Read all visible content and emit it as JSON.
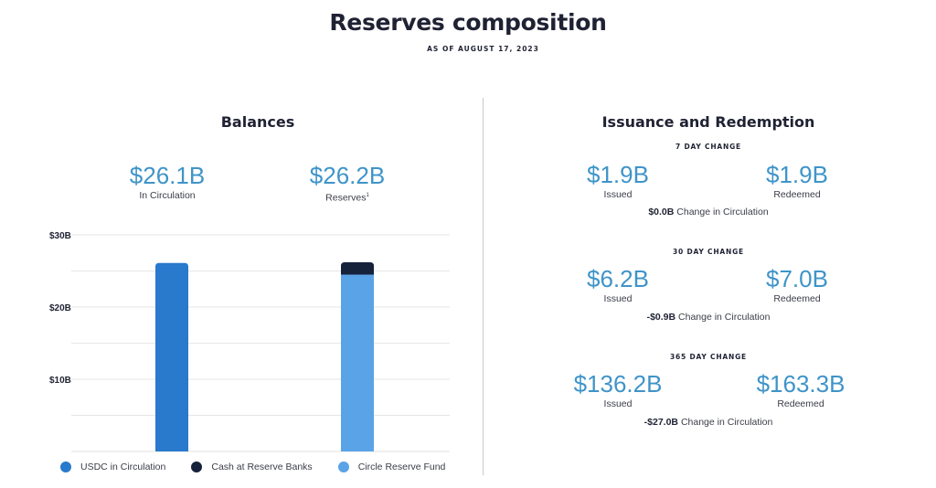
{
  "header": {
    "title": "Reserves composition",
    "subtitle": "AS OF AUGUST 17, 2023"
  },
  "balances": {
    "title": "Balances",
    "circulation": {
      "value": "$26.1B",
      "label": "In Circulation"
    },
    "reserves": {
      "value": "$26.2B",
      "label": "Reserves",
      "footnote": "1"
    }
  },
  "issuance": {
    "title": "Issuance and Redemption",
    "periods": [
      {
        "label": "7 DAY CHANGE",
        "issued": "$1.9B",
        "issued_label": "Issued",
        "redeemed": "$1.9B",
        "redeemed_label": "Redeemed",
        "change_value": "$0.0B",
        "change_text": "Change in Circulation"
      },
      {
        "label": "30 DAY CHANGE",
        "issued": "$6.2B",
        "issued_label": "Issued",
        "redeemed": "$7.0B",
        "redeemed_label": "Redeemed",
        "change_value": "-$0.9B",
        "change_text": "Change in Circulation"
      },
      {
        "label": "365 DAY CHANGE",
        "issued": "$136.2B",
        "issued_label": "Issued",
        "redeemed": "$163.3B",
        "redeemed_label": "Redeemed",
        "change_value": "-$27.0B",
        "change_text": "Change in Circulation"
      }
    ]
  },
  "colors": {
    "usdc": "#2979cc",
    "cash": "#16213a",
    "fund": "#5aa3e6",
    "accent_text": "#3f94c9"
  },
  "chart_data": {
    "type": "bar",
    "stacked": true,
    "categories": [
      "In Circulation",
      "Reserves"
    ],
    "series": [
      {
        "name": "USDC in Circulation",
        "values": [
          26.1,
          0
        ]
      },
      {
        "name": "Cash at Reserve Banks",
        "values": [
          0,
          1.7
        ]
      },
      {
        "name": "Circle Reserve Fund",
        "values": [
          0,
          24.5
        ]
      }
    ],
    "yticks": [
      "$10B",
      "$20B",
      "$30B"
    ],
    "ytick_values": [
      10,
      20,
      30
    ],
    "ylim": [
      0,
      30
    ],
    "grid": true,
    "legend_position": "bottom"
  }
}
